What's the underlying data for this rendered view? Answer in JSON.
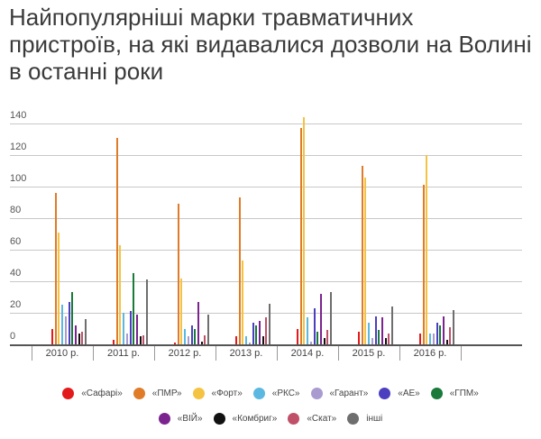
{
  "title": "Найпопулярніші марки травматичних пристроїв, на які видавалися дозволи на Волині в останні роки",
  "chart_data": {
    "type": "bar",
    "title": "Найпопулярніші марки травматичних пристроїв, на які видавалися дозволи на Волині в останні роки",
    "xlabel": "",
    "ylabel": "",
    "ylim": [
      0,
      140
    ],
    "yticks": [
      0,
      20,
      40,
      60,
      80,
      100,
      120,
      140
    ],
    "grid": true,
    "legend_position": "bottom",
    "categories": [
      "2010 р.",
      "2011 р.",
      "2012 р.",
      "2013 р.",
      "2014 р.",
      "2015 р.",
      "2016 р."
    ],
    "series": [
      {
        "name": "«Сафарі»",
        "color": "#e31a1c",
        "values": [
          10,
          3,
          1,
          5,
          10,
          8,
          7
        ]
      },
      {
        "name": "«ПМР»",
        "color": "#e07b28",
        "values": [
          96,
          131,
          89,
          93,
          137,
          113,
          101
        ]
      },
      {
        "name": "«Форт»",
        "color": "#f5c342",
        "values": [
          71,
          63,
          42,
          53,
          144,
          106,
          120
        ]
      },
      {
        "name": "«РКС»",
        "color": "#5bb8e0",
        "values": [
          25,
          20,
          10,
          5,
          17,
          14,
          7
        ]
      },
      {
        "name": "«Гарант»",
        "color": "#a99bd0",
        "values": [
          18,
          7,
          5,
          1,
          2,
          4,
          7
        ]
      },
      {
        "name": "«АЕ»",
        "color": "#4b3fbf",
        "values": [
          27,
          21,
          12,
          14,
          23,
          18,
          14
        ]
      },
      {
        "name": "«ГПМ»",
        "color": "#1a7a3a",
        "values": [
          33,
          45,
          10,
          12,
          8,
          9,
          12
        ]
      },
      {
        "name": "«ВІЙ»",
        "color": "#7b2490",
        "values": [
          12,
          19,
          27,
          15,
          32,
          17,
          18
        ]
      },
      {
        "name": "«Комбриг»",
        "color": "#111111",
        "values": [
          7,
          5,
          2,
          5,
          4,
          4,
          3
        ]
      },
      {
        "name": "«Скат»",
        "color": "#c05068",
        "values": [
          8,
          6,
          6,
          17,
          9,
          7,
          11
        ]
      },
      {
        "name": "інші",
        "color": "#6e6e6e",
        "values": [
          16,
          41,
          19,
          26,
          33,
          24,
          22
        ]
      }
    ]
  },
  "legend": {
    "row1": [
      {
        "label": "«Сафарі»",
        "color": "#e31a1c"
      },
      {
        "label": "«ПМР»",
        "color": "#e07b28"
      },
      {
        "label": "«Форт»",
        "color": "#f5c342"
      },
      {
        "label": "«РКС»",
        "color": "#5bb8e0"
      },
      {
        "label": "«Гарант»",
        "color": "#a99bd0"
      },
      {
        "label": "«АЕ»",
        "color": "#4b3fbf"
      },
      {
        "label": "«ГПМ»",
        "color": "#1a7a3a"
      }
    ],
    "row2": [
      {
        "label": "«ВІЙ»",
        "color": "#7b2490"
      },
      {
        "label": "«Комбриг»",
        "color": "#111111"
      },
      {
        "label": "«Скат»",
        "color": "#c05068"
      },
      {
        "label": "інші",
        "color": "#6e6e6e"
      }
    ]
  }
}
